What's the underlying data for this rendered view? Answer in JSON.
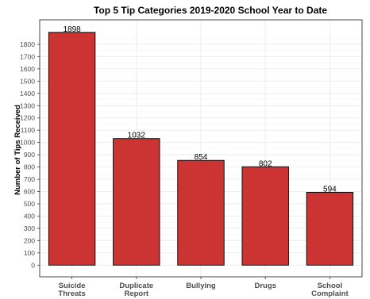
{
  "chart_data": {
    "type": "bar",
    "title": "Top 5 Tip Categories 2019-2020 School Year to Date",
    "xlabel": "",
    "ylabel": "Number of Tips Received",
    "categories": [
      [
        "Suicide",
        "Threats"
      ],
      [
        "Duplicate",
        "Report"
      ],
      [
        "Bullying"
      ],
      [
        "Drugs"
      ],
      [
        "School",
        "Complaint"
      ]
    ],
    "values": [
      1898,
      1032,
      854,
      802,
      594
    ],
    "data_labels": [
      "1898",
      "1032",
      "854",
      "802",
      "594"
    ],
    "ylim": [
      -95,
      2000
    ],
    "yticks": [
      0,
      100,
      200,
      300,
      400,
      500,
      600,
      700,
      800,
      900,
      1000,
      1100,
      1200,
      1300,
      1400,
      1500,
      1600,
      1700,
      1800
    ],
    "grid": true,
    "legend": "none",
    "bar_color": "#cc3333"
  }
}
